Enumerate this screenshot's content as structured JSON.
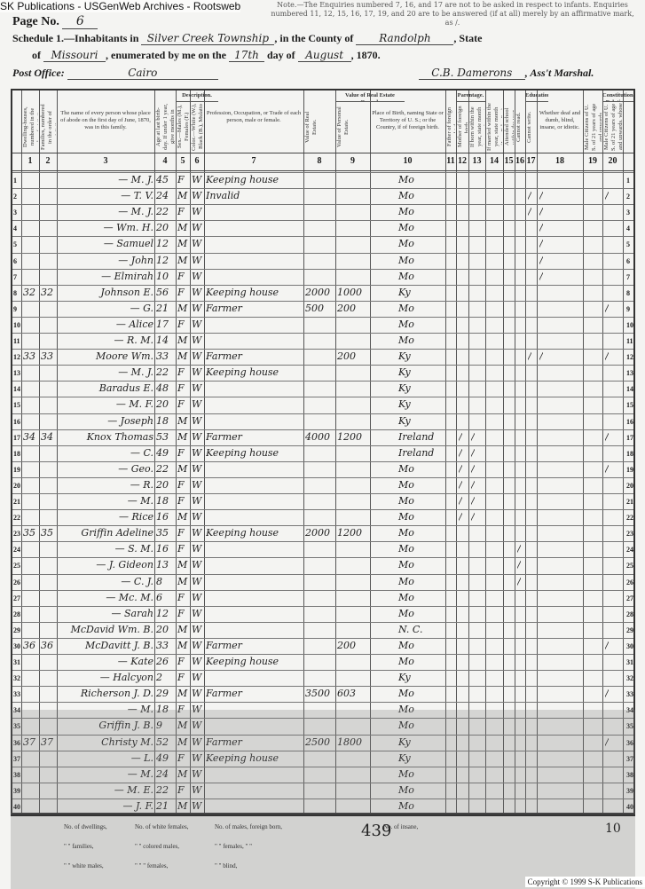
{
  "watermark": "SK Publications - USGenWeb Archives - Rootsweb",
  "copyright": "Copyright © 1999 S-K Publications",
  "header": {
    "page_label": "Page No.",
    "page_no": "6",
    "instructions": "Note.—The Enquiries numbered 7, 16, and 17 are not to be asked in respect to infants. Enquiries numbered 11, 12, 15, 16, 17, 19, and 20 are to be answered (if at all) merely by an affirmative mark, as /.",
    "schedule": "Schedule 1.—Inhabitants in",
    "township": "Silver Creek Township",
    "county_label": ", in the County of",
    "county": "Randolph",
    "state_label": ", State",
    "of_label": "of",
    "state": "Missouri",
    "enumerated_label": ", enumerated by me on the",
    "day": "17th",
    "day_of": "day of",
    "month": "August",
    "year": ", 1870.",
    "post_office_label": "Post Office:",
    "post_office": "Cairo",
    "marshal": "C.B. Damerons",
    "marshal_label": ", Ass't Marshal."
  },
  "columns": [
    {
      "num": "1",
      "head": "Dwelling-houses, numbered in the order of visitation."
    },
    {
      "num": "2",
      "head": "Families, numbered in the order of visitation."
    },
    {
      "num": "3",
      "head": "The name of every person whose place of abode on the first day of June, 1870, was in this family."
    },
    {
      "num": "4",
      "head": "Age at last birth-day. If under 1 year, give months in fractions, thus, 3/12."
    },
    {
      "num": "5",
      "head": "Sex.—Males (M.), Females (F.)"
    },
    {
      "num": "6",
      "head": "Color.—White (W.), Black (B.), Mulatto (M.), Chinese (C.), Indian (I.)"
    },
    {
      "num": "7",
      "head": "Profession, Occupation, or Trade of each person, male or female."
    },
    {
      "num": "8",
      "head": "Value of Real Estate."
    },
    {
      "num": "9",
      "head": "Value of Personal Estate."
    },
    {
      "num": "10",
      "head": "Place of Birth, naming State or Territory of U. S.; or the Country, if of foreign birth."
    },
    {
      "num": "11",
      "head": "Father of foreign birth."
    },
    {
      "num": "12",
      "head": "Mother of foreign birth."
    },
    {
      "num": "13",
      "head": "If born within the year, state month (Jan., Feb., &c.)"
    },
    {
      "num": "14",
      "head": "If married within the year, state month (Jan., Feb., &c.)"
    },
    {
      "num": "15",
      "head": "Attended school within the year."
    },
    {
      "num": "16",
      "head": "Cannot read."
    },
    {
      "num": "17",
      "head": "Cannot write."
    },
    {
      "num": "18",
      "head": "Whether deaf and dumb, blind, insane, or idiotic."
    },
    {
      "num": "19",
      "head": "Male Citizens of U. S. of 21 years of age and upwards."
    },
    {
      "num": "20",
      "head": "Male Citizens of U. S. of 21 years of age and upwards, whose right to vote is denied or abridged."
    }
  ],
  "group_heads": {
    "description": "Description.",
    "value": "Value of Real Estate Owned.",
    "parentage": "Parentage.",
    "education": "Education.",
    "constitutional": "Constitutional Relations."
  },
  "rows": [
    [
      "",
      "",
      "— M. J.",
      "45",
      "F",
      "W",
      "Keeping house",
      "",
      "",
      "Mo",
      ""
    ],
    [
      "",
      "",
      "— T. V.",
      "24",
      "M",
      "W",
      "Invalid",
      "",
      "",
      "Mo",
      "16,17,19"
    ],
    [
      "",
      "",
      "— M. J.",
      "22",
      "F",
      "W",
      "",
      "",
      "",
      "Mo",
      "16,17"
    ],
    [
      "",
      "",
      "— Wm. H.",
      "20",
      "M",
      "W",
      "",
      "",
      "",
      "Mo",
      "17"
    ],
    [
      "",
      "",
      "— Samuel",
      "12",
      "M",
      "W",
      "",
      "",
      "",
      "Mo",
      "17"
    ],
    [
      "",
      "",
      "— John",
      "12",
      "M",
      "W",
      "",
      "",
      "",
      "Mo",
      "17"
    ],
    [
      "",
      "",
      "— Elmirah",
      "10",
      "F",
      "W",
      "",
      "",
      "",
      "Mo",
      "17"
    ],
    [
      "32",
      "32",
      "Johnson E.",
      "56",
      "F",
      "W",
      "Keeping house",
      "2000",
      "1000",
      "Ky",
      ""
    ],
    [
      "",
      "",
      "— G.",
      "21",
      "M",
      "W",
      "Farmer",
      "500",
      "200",
      "Mo",
      "19"
    ],
    [
      "",
      "",
      "— Alice",
      "17",
      "F",
      "W",
      "",
      "",
      "",
      "Mo",
      ""
    ],
    [
      "",
      "",
      "— R. M.",
      "14",
      "M",
      "W",
      "",
      "",
      "",
      "Mo",
      ""
    ],
    [
      "33",
      "33",
      "Moore Wm.",
      "33",
      "M",
      "W",
      "Farmer",
      "",
      "200",
      "Ky",
      "16,17,19"
    ],
    [
      "",
      "",
      "— M. J.",
      "22",
      "F",
      "W",
      "Keeping house",
      "",
      "",
      "Ky",
      ""
    ],
    [
      "",
      "",
      "Baradus E.",
      "48",
      "F",
      "W",
      "",
      "",
      "",
      "Ky",
      ""
    ],
    [
      "",
      "",
      "— M. F.",
      "20",
      "F",
      "W",
      "",
      "",
      "",
      "Ky",
      ""
    ],
    [
      "",
      "",
      "— Joseph",
      "18",
      "M",
      "W",
      "",
      "",
      "",
      "Ky",
      ""
    ],
    [
      "34",
      "34",
      "Knox Thomas",
      "53",
      "M",
      "W",
      "Farmer",
      "4000",
      "1200",
      "Ireland",
      "11,12,19"
    ],
    [
      "",
      "",
      "— C.",
      "49",
      "F",
      "W",
      "Keeping house",
      "",
      "",
      "Ireland",
      "11,12"
    ],
    [
      "",
      "",
      "— Geo.",
      "22",
      "M",
      "W",
      "",
      "",
      "",
      "Mo",
      "11,12,19"
    ],
    [
      "",
      "",
      "— R.",
      "20",
      "F",
      "W",
      "",
      "",
      "",
      "Mo",
      "11,12"
    ],
    [
      "",
      "",
      "— M.",
      "18",
      "F",
      "W",
      "",
      "",
      "",
      "Mo",
      "11,12"
    ],
    [
      "",
      "",
      "— Rice",
      "16",
      "M",
      "W",
      "",
      "",
      "",
      "Mo",
      "11,12"
    ],
    [
      "35",
      "35",
      "Griffin Adeline",
      "35",
      "F",
      "W",
      "Keeping house",
      "2000",
      "1200",
      "Mo",
      ""
    ],
    [
      "",
      "",
      "— S. M.",
      "16",
      "F",
      "W",
      "",
      "",
      "",
      "Mo",
      "15"
    ],
    [
      "",
      "",
      "— J. Gideon",
      "13",
      "M",
      "W",
      "",
      "",
      "",
      "Mo",
      "15"
    ],
    [
      "",
      "",
      "— C. J.",
      "8",
      "M",
      "W",
      "",
      "",
      "",
      "Mo",
      "15"
    ],
    [
      "",
      "",
      "— Mc. M.",
      "6",
      "F",
      "W",
      "",
      "",
      "",
      "Mo",
      ""
    ],
    [
      "",
      "",
      "— Sarah",
      "12",
      "F",
      "W",
      "",
      "",
      "",
      "Mo",
      ""
    ],
    [
      "",
      "",
      "McDavid Wm. B.",
      "20",
      "M",
      "W",
      "",
      "",
      "",
      "N. C.",
      ""
    ],
    [
      "36",
      "36",
      "McDavitt J. B.",
      "33",
      "M",
      "W",
      "Farmer",
      "",
      "200",
      "Mo",
      "19"
    ],
    [
      "",
      "",
      "— Kate",
      "26",
      "F",
      "W",
      "Keeping house",
      "",
      "",
      "Mo",
      ""
    ],
    [
      "",
      "",
      "— Halcyon",
      "2",
      "F",
      "W",
      "",
      "",
      "",
      "Ky",
      ""
    ],
    [
      "",
      "",
      "Richerson J. D.",
      "29",
      "M",
      "W",
      "Farmer",
      "3500",
      "603",
      "Mo",
      "19"
    ],
    [
      "",
      "",
      "— M.",
      "18",
      "F",
      "W",
      "",
      "",
      "",
      "Mo",
      ""
    ],
    [
      "",
      "",
      "Griffin J. B.",
      "9",
      "M",
      "W",
      "",
      "",
      "",
      "Mo",
      ""
    ],
    [
      "37",
      "37",
      "Christy M.",
      "52",
      "M",
      "W",
      "Farmer",
      "2500",
      "1800",
      "Ky",
      "19"
    ],
    [
      "",
      "",
      "— L.",
      "49",
      "F",
      "W",
      "Keeping house",
      "",
      "",
      "Ky",
      ""
    ],
    [
      "",
      "",
      "— M.",
      "24",
      "M",
      "W",
      "",
      "",
      "",
      "Mo",
      ""
    ],
    [
      "",
      "",
      "— M. E.",
      "22",
      "F",
      "W",
      "",
      "",
      "",
      "Mo",
      ""
    ],
    [
      "",
      "",
      "— J. F.",
      "21",
      "M",
      "W",
      "",
      "",
      "",
      "Mo",
      ""
    ]
  ],
  "footer": {
    "labels": [
      "No. of dwellings,",
      "\" \" families,",
      "\" \" white males,",
      "No. of white females,",
      "\" \" colored males,",
      "\" \" \" females,",
      "No. of males, foreign born,",
      "\" \" females, \" \"",
      "\" \" blind,",
      "No. of insane,"
    ],
    "tally": "439",
    "tally2": "10"
  }
}
